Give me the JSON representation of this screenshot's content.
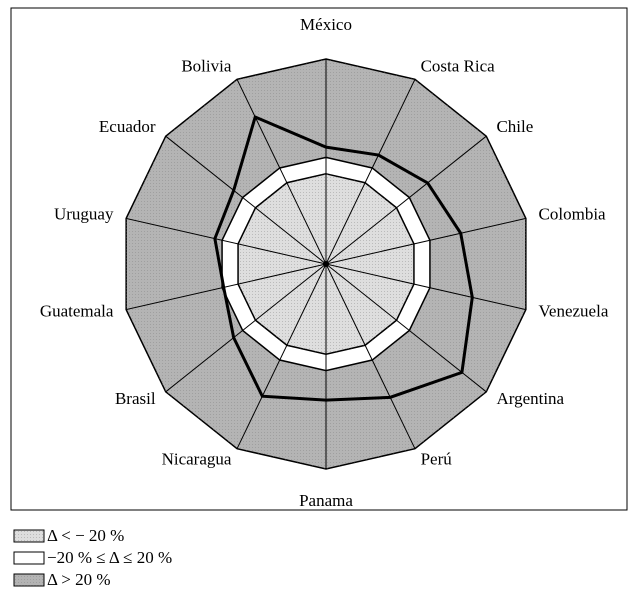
{
  "chart_data": {
    "type": "radar",
    "categories": [
      "México",
      "Costa Rica",
      "Chile",
      "Colombia",
      "Venezuela",
      "Argentina",
      "Perú",
      "Panama",
      "Nicaragua",
      "Brasil",
      "Guatemala",
      "Uruguay",
      "Ecuador",
      "Bolivia"
    ],
    "series": [
      {
        "color": "#000000",
        "values": [
          45,
          55,
          77,
          97,
          126,
          184,
          121,
          92,
          118,
          48,
          16,
          38,
          48,
          158
        ]
      }
    ],
    "rlim": [
      -240,
      260
    ],
    "zones": [
      {
        "label": "Δ < − 20 %",
        "color": "#dedede",
        "to": -20
      },
      {
        "label": "−20 % ≤ Δ ≤ 20 %",
        "color": "#ffffff",
        "from": -20,
        "to": 20
      },
      {
        "label": "Δ > 20 %",
        "color": "#b4b4b4",
        "from": 20
      }
    ]
  }
}
